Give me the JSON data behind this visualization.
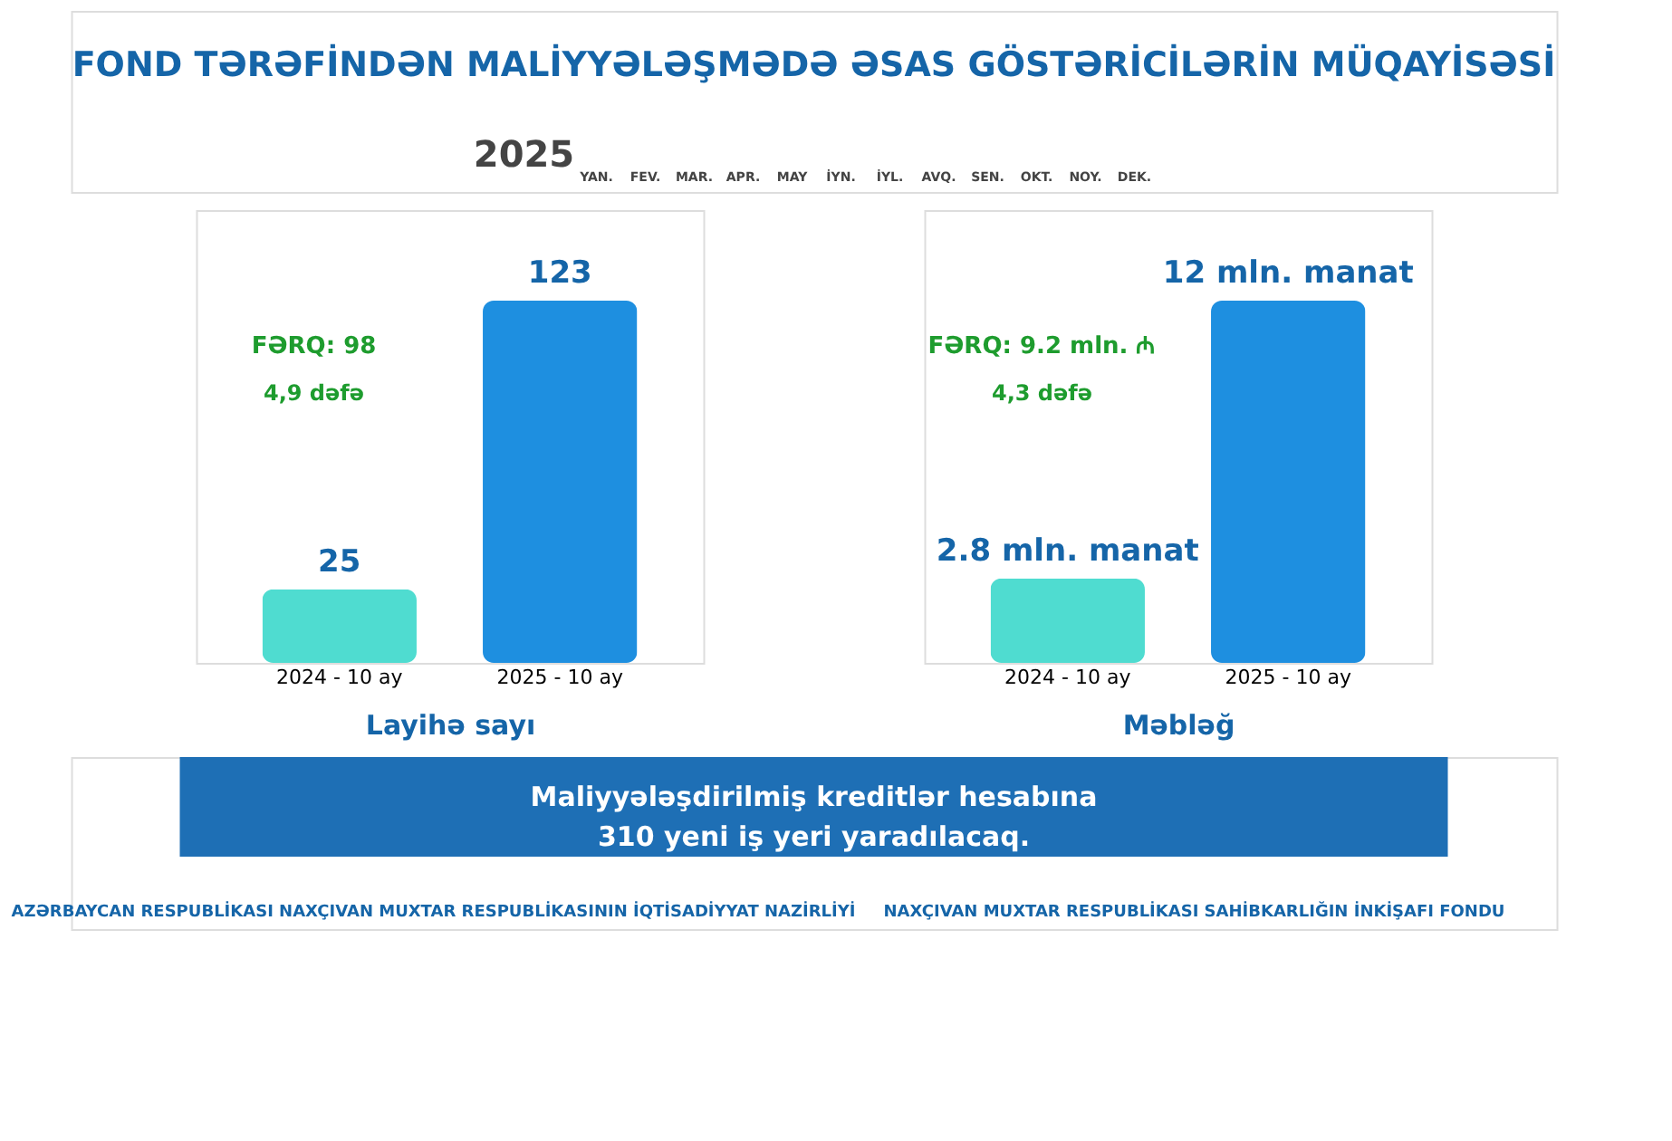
{
  "chart_data": [
    {
      "type": "other",
      "title": "FOND TƏRƏFİNDƏN MALİYYƏLƏŞMƏDƏ ƏSAS GÖSTƏRİCİLƏRİN MÜQAYİSƏSİ",
      "annotations": [
        "2025",
        "YAN.",
        "FEV.",
        "MAR.",
        "APR.",
        "MAY",
        "İYN.",
        "İYL.",
        "AVQ.",
        "SEN.",
        "OKT.",
        "NOY.",
        "DEK.",
        "Maliyyələşdirilmiş kreditlər hesabına",
        "310 yeni iş yeri yaradılacaq.",
        "AZƏRBAYCAN RESPUBLİKASI NAXÇIVAN MUXTAR RESPUBLİKASININ İQTİSADİYYAT NAZİRLİYİ",
        "NAXÇIVAN MUXTAR RESPUBLİKASI SAHİBKARLIĞIN İNKİŞAFI FONDU"
      ]
    },
    {
      "type": "bar",
      "xlabel": "Layihə sayı",
      "categories": [
        "2024 - 10 ay",
        "2025 - 10 ay"
      ],
      "values": [
        25,
        123
      ],
      "colors": [
        "#4fdcd0",
        "#1e8fe0"
      ],
      "value_labels": [
        "25",
        "123"
      ],
      "annotations": [
        "FƏRQ: 98",
        "4,9 dəfə"
      ]
    },
    {
      "type": "bar",
      "xlabel": "Məbləğ",
      "categories": [
        "2024 - 10 ay",
        "2025 - 10 ay"
      ],
      "values": [
        2.8,
        12
      ],
      "colors": [
        "#4fdcd0",
        "#1e8fe0"
      ],
      "value_labels": [
        "2.8 mln. manat",
        "12 mln. manat"
      ],
      "annotations": [
        "FƏRQ: 9.2 mln. ₼",
        "4,3 dəfə"
      ]
    }
  ]
}
